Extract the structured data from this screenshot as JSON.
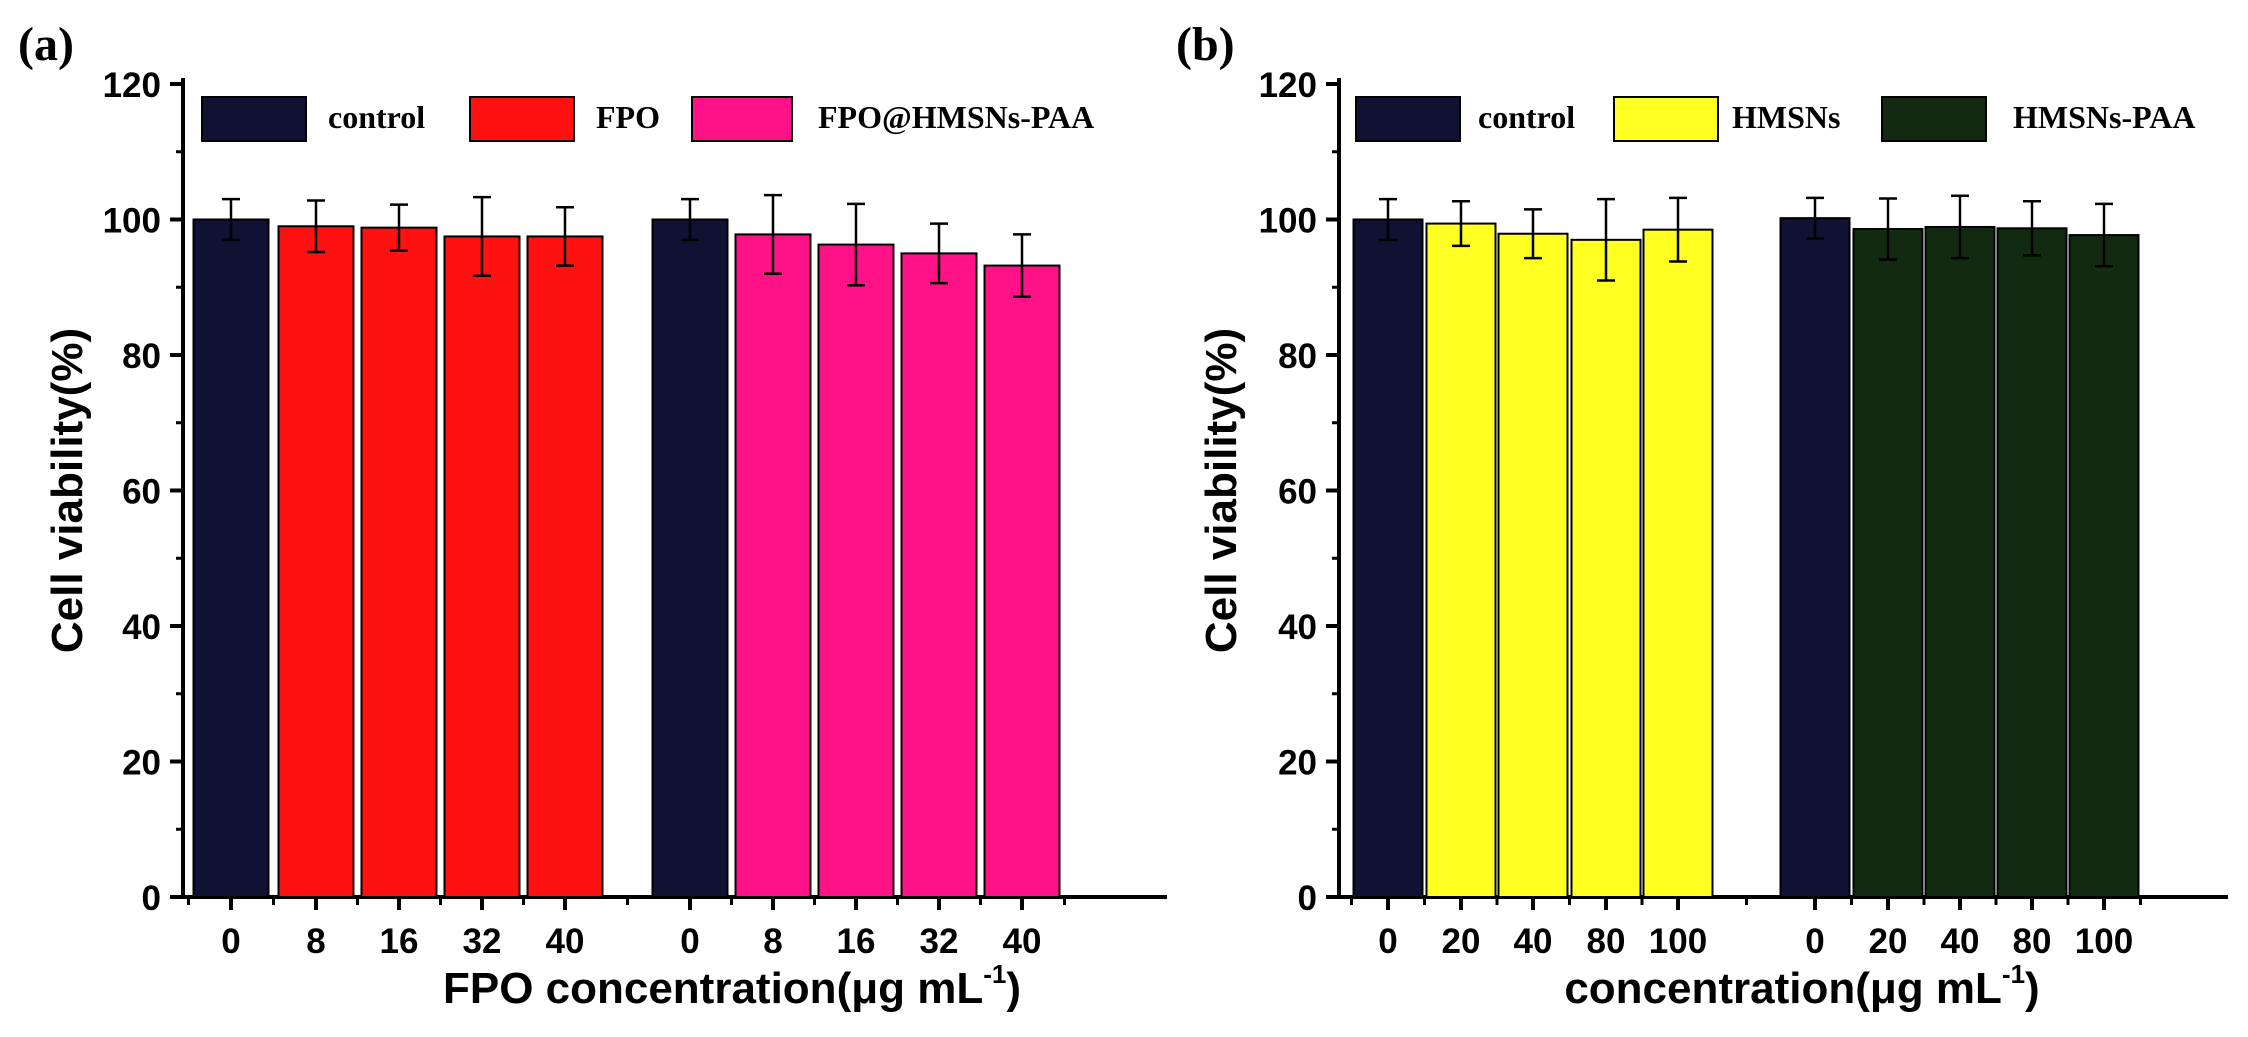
{
  "chart_data": [
    {
      "type": "bar",
      "panel_label": "(a)",
      "ylabel": "Cell viability(%)",
      "xlabel": "FPO concentration(μg mL",
      "xlabel_sup": "-1",
      "xlabel_close": ")",
      "ylim": [
        0,
        120
      ],
      "yticks": [
        0,
        20,
        40,
        60,
        80,
        100,
        120
      ],
      "legend": {
        "placement": "top",
        "items": [
          {
            "label": "control",
            "color": "#111133"
          },
          {
            "label": "FPO",
            "color": "#ff1111"
          },
          {
            "label": "FPO@HMSNs-PAA",
            "color": "#ff1188"
          }
        ]
      },
      "groups": [
        {
          "bars": [
            {
              "tick": "0",
              "value": 100.0,
              "error": 3.0,
              "series": "control"
            },
            {
              "tick": "8",
              "value": 99.0,
              "error": 3.8,
              "series": "FPO"
            },
            {
              "tick": "16",
              "value": 98.8,
              "error": 3.4,
              "series": "FPO"
            },
            {
              "tick": "32",
              "value": 97.5,
              "error": 5.8,
              "series": "FPO"
            },
            {
              "tick": "40",
              "value": 97.5,
              "error": 4.3,
              "series": "FPO"
            }
          ]
        },
        {
          "bars": [
            {
              "tick": "0",
              "value": 100.0,
              "error": 3.0,
              "series": "control"
            },
            {
              "tick": "8",
              "value": 97.8,
              "error": 5.8,
              "series": "FPO@HMSNs-PAA"
            },
            {
              "tick": "16",
              "value": 96.3,
              "error": 6.0,
              "series": "FPO@HMSNs-PAA"
            },
            {
              "tick": "32",
              "value": 95.0,
              "error": 4.4,
              "series": "FPO@HMSNs-PAA"
            },
            {
              "tick": "40",
              "value": 93.2,
              "error": 4.6,
              "series": "FPO@HMSNs-PAA"
            }
          ]
        }
      ]
    },
    {
      "type": "bar",
      "panel_label": "(b)",
      "ylabel": "Cell viability(%)",
      "xlabel": "concentration(μg mL",
      "xlabel_sup": "-1",
      "xlabel_close": ")",
      "ylim": [
        0,
        120
      ],
      "yticks": [
        0,
        20,
        40,
        60,
        80,
        100,
        120
      ],
      "legend": {
        "placement": "top",
        "items": [
          {
            "label": "control",
            "color": "#111133"
          },
          {
            "label": "HMSNs",
            "color": "#ffff22"
          },
          {
            "label": "HMSNs-PAA",
            "color": "#112a11"
          }
        ]
      },
      "groups": [
        {
          "bars": [
            {
              "tick": "0",
              "value": 100.0,
              "error": 3.0,
              "series": "control"
            },
            {
              "tick": "20",
              "value": 99.4,
              "error": 3.3,
              "series": "HMSNs"
            },
            {
              "tick": "40",
              "value": 97.9,
              "error": 3.6,
              "series": "HMSNs"
            },
            {
              "tick": "80",
              "value": 97.0,
              "error": 6.0,
              "series": "HMSNs"
            },
            {
              "tick": "100",
              "value": 98.5,
              "error": 4.7,
              "series": "HMSNs"
            }
          ]
        },
        {
          "bars": [
            {
              "tick": "0",
              "value": 100.2,
              "error": 3.0,
              "series": "control"
            },
            {
              "tick": "20",
              "value": 98.6,
              "error": 4.5,
              "series": "HMSNs-PAA"
            },
            {
              "tick": "40",
              "value": 98.9,
              "error": 4.6,
              "series": "HMSNs-PAA"
            },
            {
              "tick": "80",
              "value": 98.7,
              "error": 4.0,
              "series": "HMSNs-PAA"
            },
            {
              "tick": "100",
              "value": 97.7,
              "error": 4.6,
              "series": "HMSNs-PAA"
            }
          ]
        }
      ]
    }
  ]
}
